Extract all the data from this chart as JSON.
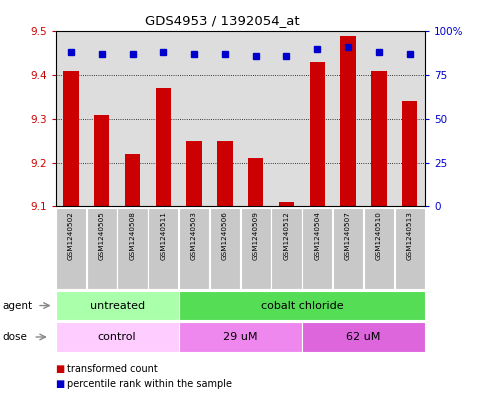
{
  "title": "GDS4953 / 1392054_at",
  "samples": [
    "GSM1240502",
    "GSM1240505",
    "GSM1240508",
    "GSM1240511",
    "GSM1240503",
    "GSM1240506",
    "GSM1240509",
    "GSM1240512",
    "GSM1240504",
    "GSM1240507",
    "GSM1240510",
    "GSM1240513"
  ],
  "bar_values": [
    9.41,
    9.31,
    9.22,
    9.37,
    9.25,
    9.25,
    9.21,
    9.11,
    9.43,
    9.49,
    9.41,
    9.34
  ],
  "dot_values": [
    88,
    87,
    87,
    88,
    87,
    87,
    86,
    86,
    90,
    91,
    88,
    87
  ],
  "bar_color": "#cc0000",
  "dot_color": "#0000cc",
  "ylim_left": [
    9.1,
    9.5
  ],
  "ylim_right": [
    0,
    100
  ],
  "yticks_left": [
    9.1,
    9.2,
    9.3,
    9.4,
    9.5
  ],
  "yticks_right": [
    0,
    25,
    50,
    75,
    100
  ],
  "ytick_labels_right": [
    "0",
    "25",
    "50",
    "75",
    "100%"
  ],
  "agent_groups": [
    {
      "label": "untreated",
      "start": 0,
      "end": 4,
      "color": "#aaffaa"
    },
    {
      "label": "cobalt chloride",
      "start": 4,
      "end": 12,
      "color": "#55dd55"
    }
  ],
  "dose_groups": [
    {
      "label": "control",
      "start": 0,
      "end": 4,
      "color": "#ffccff"
    },
    {
      "label": "29 uM",
      "start": 4,
      "end": 8,
      "color": "#ee88ee"
    },
    {
      "label": "62 uM",
      "start": 8,
      "end": 12,
      "color": "#dd66dd"
    }
  ],
  "legend_items": [
    {
      "label": "transformed count",
      "color": "#cc0000"
    },
    {
      "label": "percentile rank within the sample",
      "color": "#0000cc"
    }
  ],
  "bar_width": 0.5,
  "background_color": "#ffffff",
  "plot_bg_color": "#dddddd",
  "ylabel_left_color": "#cc0000",
  "ylabel_right_color": "#0000cc"
}
